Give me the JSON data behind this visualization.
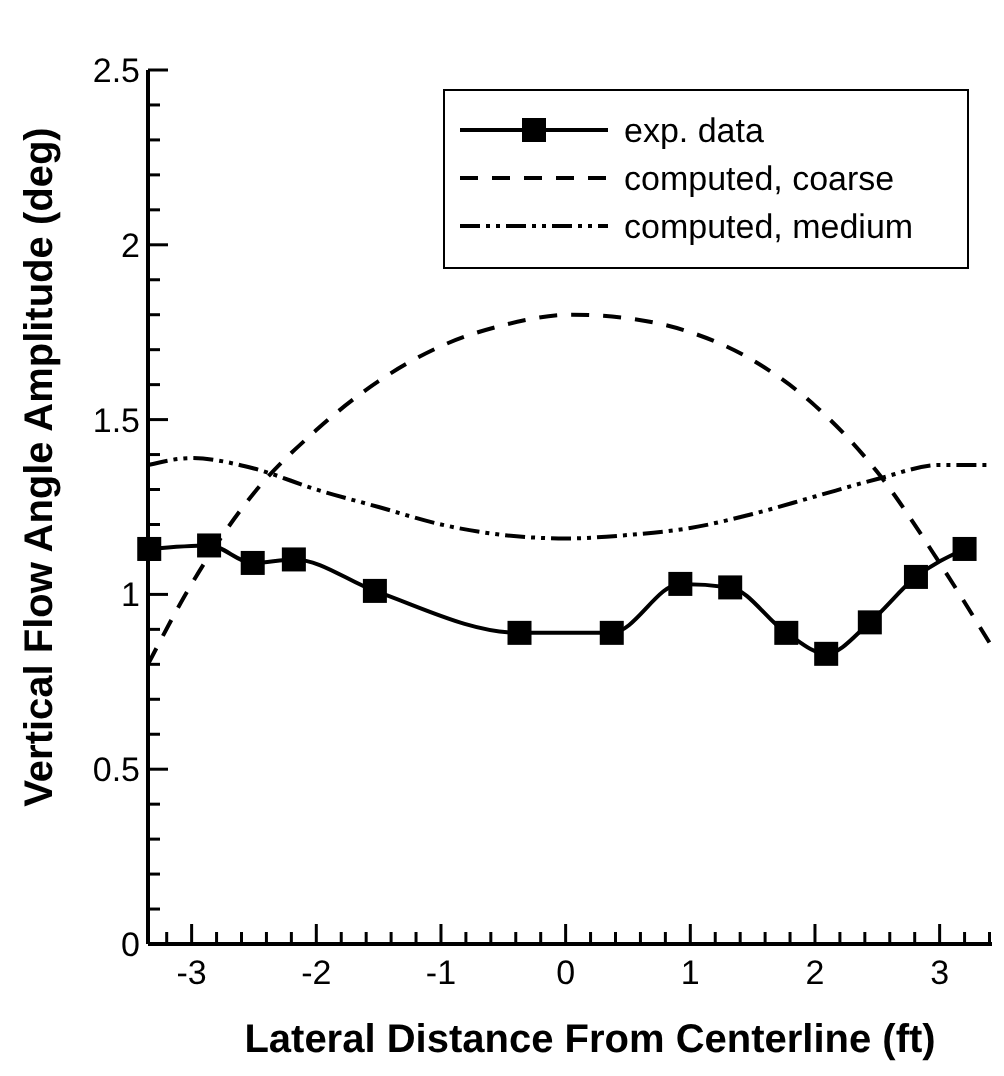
{
  "chart_data": {
    "type": "line",
    "xlabel": "Lateral Distance From Centerline (ft)",
    "ylabel": "Vertical Flow Angle Amplitude (deg)",
    "xlim": [
      -3.35,
      3.42
    ],
    "ylim": [
      0,
      2.5
    ],
    "xticks": [
      {
        "value": -3.2,
        "label": null
      },
      -3,
      {
        "value": -2.8,
        "label": null
      },
      {
        "value": -2.6,
        "label": null
      },
      {
        "value": -2.4,
        "label": null
      },
      {
        "value": -2.2,
        "label": null
      },
      -2,
      {
        "value": -1.8,
        "label": null
      },
      {
        "value": -1.6,
        "label": null
      },
      {
        "value": -1.4,
        "label": null
      },
      {
        "value": -1.2,
        "label": null
      },
      -1,
      {
        "value": -0.8,
        "label": null
      },
      {
        "value": -0.6,
        "label": null
      },
      {
        "value": -0.4,
        "label": null
      },
      {
        "value": -0.2,
        "label": null
      },
      0,
      {
        "value": 0.2,
        "label": null
      },
      {
        "value": 0.4,
        "label": null
      },
      {
        "value": 0.6,
        "label": null
      },
      {
        "value": 0.8,
        "label": null
      },
      1,
      {
        "value": 1.2,
        "label": null
      },
      {
        "value": 1.4,
        "label": null
      },
      {
        "value": 1.6,
        "label": null
      },
      {
        "value": 1.8,
        "label": null
      },
      2,
      {
        "value": 2.2,
        "label": null
      },
      {
        "value": 2.4,
        "label": null
      },
      {
        "value": 2.6,
        "label": null
      },
      {
        "value": 2.8,
        "label": null
      },
      3,
      {
        "value": 3.2,
        "label": null
      },
      {
        "value": 3.4,
        "label": null
      }
    ],
    "yticks": [
      0,
      {
        "value": 0.1,
        "label": null
      },
      {
        "value": 0.2,
        "label": null
      },
      {
        "value": 0.3,
        "label": null
      },
      {
        "value": 0.4,
        "label": null
      },
      0.5,
      {
        "value": 0.6,
        "label": null
      },
      {
        "value": 0.7,
        "label": null
      },
      {
        "value": 0.8,
        "label": null
      },
      {
        "value": 0.9,
        "label": null
      },
      1,
      {
        "value": 1.1,
        "label": null
      },
      {
        "value": 1.2,
        "label": null
      },
      {
        "value": 1.3,
        "label": null
      },
      {
        "value": 1.4,
        "label": null
      },
      1.5,
      {
        "value": 1.6,
        "label": null
      },
      {
        "value": 1.7,
        "label": null
      },
      {
        "value": 1.8,
        "label": null
      },
      {
        "value": 1.9,
        "label": null
      },
      2,
      {
        "value": 2.1,
        "label": null
      },
      {
        "value": 2.2,
        "label": null
      },
      {
        "value": 2.3,
        "label": null
      },
      {
        "value": 2.4,
        "label": null
      },
      2.5
    ],
    "legend": "top right",
    "grid": false,
    "series": [
      {
        "name": "exp. data",
        "color": "#000000",
        "marker": "square",
        "line_style": "solid",
        "x": [
          -3.34,
          -2.86,
          -2.51,
          -2.18,
          -1.53,
          -0.37,
          0.37,
          0.92,
          1.32,
          1.77,
          2.09,
          2.44,
          2.81,
          3.2
        ],
        "values": [
          1.13,
          1.14,
          1.09,
          1.1,
          1.01,
          0.89,
          0.89,
          1.03,
          1.02,
          0.89,
          0.83,
          0.92,
          1.05,
          1.13
        ]
      },
      {
        "name": "computed, coarse",
        "color": "#000000",
        "marker": "none",
        "line_style": "dashed",
        "x": [
          -3.35,
          -3,
          -2.5,
          -2,
          -1.5,
          -1,
          -0.5,
          0.05,
          0.5,
          1,
          1.5,
          2,
          2.5,
          3,
          3.42
        ],
        "values": [
          0.8,
          1.03,
          1.29,
          1.47,
          1.61,
          1.71,
          1.77,
          1.8,
          1.79,
          1.75,
          1.67,
          1.54,
          1.35,
          1.09,
          0.85
        ]
      },
      {
        "name": "computed, medium",
        "color": "#000000",
        "marker": "none",
        "line_style": "dashdotdot",
        "x": [
          -3.35,
          -3,
          -2.5,
          -2,
          -1.5,
          -1,
          -0.5,
          0,
          0.5,
          1,
          1.5,
          2,
          2.5,
          3,
          3.42
        ],
        "values": [
          1.37,
          1.39,
          1.36,
          1.3,
          1.25,
          1.2,
          1.17,
          1.16,
          1.17,
          1.19,
          1.23,
          1.28,
          1.33,
          1.37,
          1.37
        ]
      }
    ]
  }
}
